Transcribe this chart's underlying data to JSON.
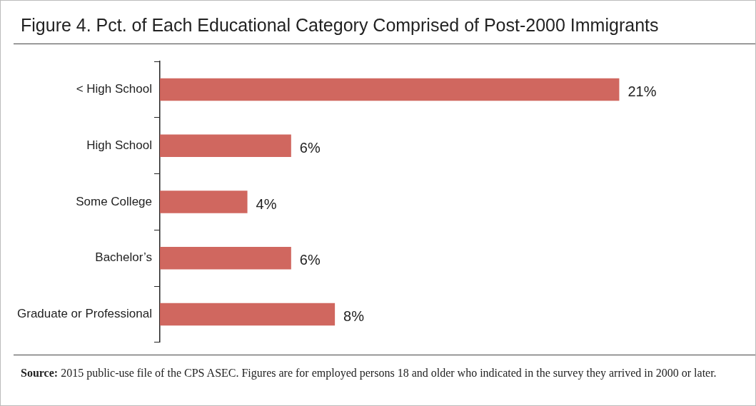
{
  "chart_data": {
    "type": "bar",
    "orientation": "horizontal",
    "title": "Figure 4. Pct. of Each Educational Category Comprised of Post-2000 Immigrants",
    "categories": [
      "< High School",
      "High School",
      "Some College",
      "Bachelor’s",
      "Graduate or Professional"
    ],
    "values": [
      21,
      6,
      4,
      6,
      8
    ],
    "value_labels": [
      "21%",
      "6%",
      "4%",
      "6%",
      "8%"
    ],
    "color": "#d0675f",
    "grid": false,
    "legend": false,
    "annotations": [
      "Source: 2015 public-use file of the CPS ASEC. Figures are for employed persons 18 and older who indicated in the survey they arrived in 2000 or later."
    ]
  }
}
